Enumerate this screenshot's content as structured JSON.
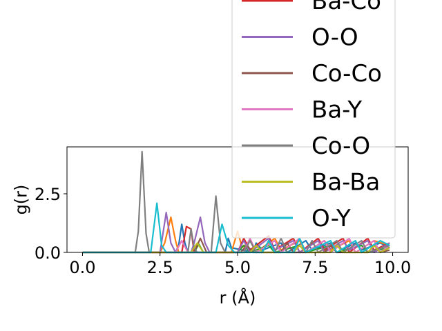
{
  "chart_data": {
    "type": "line",
    "title": "",
    "xlabel": "r (Å)",
    "ylabel": "g(r)",
    "xlim": [
      -0.5,
      10.5
    ],
    "ylim": [
      0.0,
      4.5
    ],
    "xticks": [
      "0.0",
      "2.5",
      "5.0",
      "7.5",
      "10.0"
    ],
    "yticks": [
      "0.0",
      "2.5"
    ],
    "grid": false,
    "legend_placement": "upper-right, overflowing above the axes",
    "legend_entries_visible": [
      "Ba-Co",
      "O-O",
      "Co-Co",
      "Ba-Y",
      "Co-O",
      "Ba-Ba",
      "O-Y"
    ],
    "series": [
      {
        "name": "",
        "color": "#1f77b4",
        "points": [
          [
            0,
            0
          ],
          [
            3.0,
            0
          ],
          [
            3.1,
            0.3
          ],
          [
            3.2,
            1.2
          ],
          [
            3.3,
            0.4
          ],
          [
            3.4,
            0
          ],
          [
            4.6,
            0
          ],
          [
            4.7,
            0.6
          ],
          [
            4.8,
            0.2
          ],
          [
            5.5,
            0
          ],
          [
            5.6,
            0.4
          ],
          [
            5.8,
            0.1
          ],
          [
            6.4,
            0.4
          ],
          [
            6.6,
            0
          ],
          [
            7.2,
            0.5
          ],
          [
            7.4,
            0.1
          ],
          [
            8.0,
            0.4
          ],
          [
            8.2,
            0
          ],
          [
            8.8,
            0.4
          ],
          [
            9.0,
            0.1
          ],
          [
            9.6,
            0.4
          ],
          [
            9.9,
            0.2
          ]
        ]
      },
      {
        "name": "",
        "color": "#ff7f0e",
        "points": [
          [
            0,
            0
          ],
          [
            2.5,
            0
          ],
          [
            2.65,
            0.4
          ],
          [
            2.85,
            1.5
          ],
          [
            3.0,
            0.5
          ],
          [
            3.1,
            0
          ],
          [
            4.8,
            0
          ],
          [
            5.0,
            0.9
          ],
          [
            5.15,
            0.2
          ],
          [
            5.4,
            0.5
          ],
          [
            5.6,
            0
          ],
          [
            6.2,
            0.6
          ],
          [
            6.4,
            0.1
          ],
          [
            7.0,
            0.5
          ],
          [
            7.2,
            0
          ],
          [
            7.8,
            0.5
          ],
          [
            8.0,
            0.1
          ],
          [
            8.6,
            0.5
          ],
          [
            8.8,
            0
          ],
          [
            9.4,
            0.5
          ],
          [
            9.9,
            0.3
          ]
        ]
      },
      {
        "name": "",
        "color": "#2ca02c",
        "points": [
          [
            0,
            0
          ],
          [
            3.6,
            0
          ],
          [
            3.75,
            0.35
          ],
          [
            3.9,
            0
          ],
          [
            5.0,
            0
          ],
          [
            5.2,
            0.3
          ],
          [
            5.4,
            0
          ],
          [
            6.0,
            0.3
          ],
          [
            6.2,
            0
          ],
          [
            7.0,
            0.3
          ],
          [
            7.2,
            0
          ],
          [
            8.0,
            0.3
          ],
          [
            8.2,
            0
          ],
          [
            9.0,
            0.3
          ],
          [
            9.2,
            0
          ],
          [
            9.9,
            0.2
          ]
        ]
      },
      {
        "name": "Ba-Co",
        "color": "#d62728",
        "points": [
          [
            0,
            0
          ],
          [
            3.2,
            0
          ],
          [
            3.35,
            1.1
          ],
          [
            3.5,
            1.0
          ],
          [
            3.6,
            0
          ],
          [
            5.0,
            0
          ],
          [
            5.2,
            0.6
          ],
          [
            5.4,
            0.1
          ],
          [
            6.0,
            0.7
          ],
          [
            6.2,
            0.1
          ],
          [
            6.8,
            0.6
          ],
          [
            7.0,
            0
          ],
          [
            7.6,
            0.6
          ],
          [
            7.8,
            0.1
          ],
          [
            8.4,
            0.6
          ],
          [
            8.6,
            0
          ],
          [
            9.2,
            0.6
          ],
          [
            9.4,
            0.1
          ],
          [
            9.9,
            0.4
          ]
        ]
      },
      {
        "name": "O-O",
        "color": "#9467bd",
        "points": [
          [
            0,
            0
          ],
          [
            2.5,
            0
          ],
          [
            2.7,
            1.7
          ],
          [
            2.85,
            0.4
          ],
          [
            3.0,
            0
          ],
          [
            3.5,
            0
          ],
          [
            3.6,
            0.4
          ],
          [
            3.8,
            1.5
          ],
          [
            3.95,
            0.4
          ],
          [
            4.1,
            0
          ],
          [
            5.0,
            0
          ],
          [
            5.2,
            0.5
          ],
          [
            5.4,
            0
          ],
          [
            6.0,
            0.6
          ],
          [
            6.2,
            0.1
          ],
          [
            6.8,
            0.5
          ],
          [
            7.0,
            0
          ],
          [
            7.6,
            0.5
          ],
          [
            7.8,
            0
          ],
          [
            8.4,
            0.5
          ],
          [
            8.6,
            0.1
          ],
          [
            9.2,
            0.5
          ],
          [
            9.4,
            0
          ],
          [
            9.9,
            0.4
          ]
        ]
      },
      {
        "name": "Co-Co",
        "color": "#8c564b",
        "points": [
          [
            0,
            0
          ],
          [
            3.6,
            0
          ],
          [
            3.8,
            0.6
          ],
          [
            4.0,
            0
          ],
          [
            5.1,
            0
          ],
          [
            5.3,
            0.3
          ],
          [
            5.5,
            0
          ],
          [
            6.4,
            0
          ],
          [
            6.6,
            0.4
          ],
          [
            6.8,
            0
          ],
          [
            7.8,
            0
          ],
          [
            8.0,
            0.3
          ],
          [
            8.2,
            0
          ],
          [
            9.2,
            0
          ],
          [
            9.4,
            0.3
          ],
          [
            9.6,
            0
          ],
          [
            9.9,
            0.1
          ]
        ]
      },
      {
        "name": "Ba-Y",
        "color": "#e377c2",
        "points": [
          [
            0,
            0
          ],
          [
            3.0,
            0
          ],
          [
            3.2,
            0.5
          ],
          [
            3.4,
            0
          ],
          [
            5.2,
            0
          ],
          [
            5.4,
            0.6
          ],
          [
            5.6,
            0
          ],
          [
            6.2,
            0.5
          ],
          [
            6.4,
            0
          ],
          [
            7.0,
            0.6
          ],
          [
            7.2,
            0
          ],
          [
            7.8,
            0.5
          ],
          [
            8.0,
            0
          ],
          [
            8.6,
            0.6
          ],
          [
            8.8,
            0
          ],
          [
            9.4,
            0.5
          ],
          [
            9.6,
            0
          ],
          [
            9.9,
            0.3
          ]
        ]
      },
      {
        "name": "Co-O",
        "color": "#7f7f7f",
        "points": [
          [
            0,
            0
          ],
          [
            1.7,
            0
          ],
          [
            1.8,
            0.9
          ],
          [
            1.92,
            4.3
          ],
          [
            2.05,
            0.8
          ],
          [
            2.15,
            0
          ],
          [
            3.4,
            0
          ],
          [
            3.5,
            1.0
          ],
          [
            3.6,
            0.2
          ],
          [
            3.7,
            0
          ],
          [
            4.15,
            0
          ],
          [
            4.3,
            2.4
          ],
          [
            4.45,
            0.4
          ],
          [
            4.6,
            0
          ],
          [
            5.2,
            0
          ],
          [
            5.4,
            0.5
          ],
          [
            5.6,
            0
          ],
          [
            6.2,
            0
          ],
          [
            6.4,
            0.6
          ],
          [
            6.6,
            0
          ],
          [
            7.2,
            0
          ],
          [
            7.4,
            0.5
          ],
          [
            7.6,
            0
          ],
          [
            8.2,
            0.5
          ],
          [
            8.4,
            0
          ],
          [
            9.0,
            0.5
          ],
          [
            9.2,
            0
          ],
          [
            9.9,
            0.3
          ]
        ]
      },
      {
        "name": "Ba-Ba",
        "color": "#bcbd22",
        "points": [
          [
            0,
            0
          ],
          [
            3.5,
            0
          ],
          [
            3.7,
            0.4
          ],
          [
            3.9,
            0
          ],
          [
            5.4,
            0
          ],
          [
            5.6,
            0.3
          ],
          [
            5.8,
            0
          ],
          [
            6.8,
            0
          ],
          [
            7.0,
            0.3
          ],
          [
            7.2,
            0
          ],
          [
            8.0,
            0
          ],
          [
            8.2,
            0.3
          ],
          [
            8.4,
            0
          ],
          [
            9.2,
            0
          ],
          [
            9.4,
            0.3
          ],
          [
            9.6,
            0
          ],
          [
            9.9,
            0.2
          ]
        ]
      },
      {
        "name": "O-Y",
        "color": "#17becf",
        "points": [
          [
            0,
            0
          ],
          [
            2.2,
            0
          ],
          [
            2.4,
            2.1
          ],
          [
            2.55,
            0.3
          ],
          [
            2.7,
            0
          ],
          [
            4.3,
            0
          ],
          [
            4.5,
            1.2
          ],
          [
            4.7,
            0.3
          ],
          [
            4.9,
            0
          ],
          [
            5.8,
            0
          ],
          [
            6.0,
            0.5
          ],
          [
            6.2,
            0
          ],
          [
            6.8,
            0
          ],
          [
            7.0,
            0.6
          ],
          [
            7.2,
            0
          ],
          [
            8.0,
            0.5
          ],
          [
            8.2,
            0
          ],
          [
            8.8,
            0.5
          ],
          [
            9.0,
            0
          ],
          [
            9.6,
            0.5
          ],
          [
            9.9,
            0.3
          ]
        ]
      }
    ]
  }
}
